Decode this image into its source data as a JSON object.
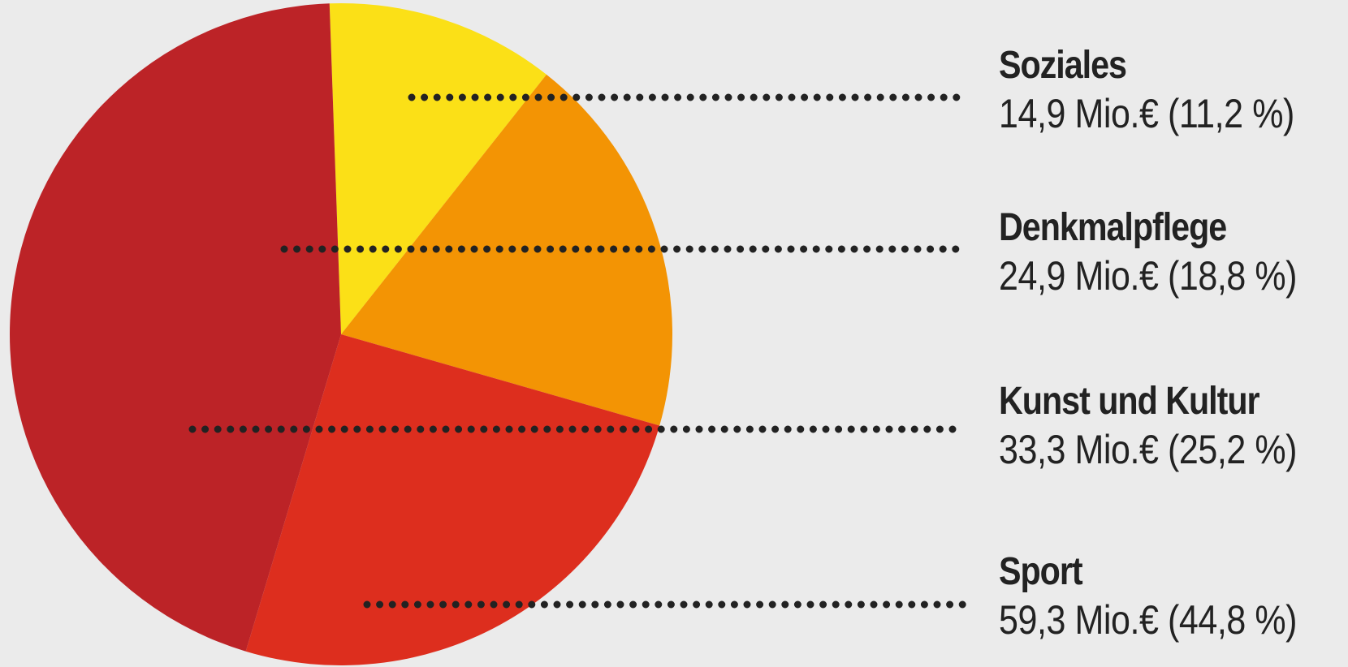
{
  "chart_data": {
    "type": "pie",
    "slices": [
      {
        "label": "Soziales",
        "value_text": "14,9 Mio.€ (11,2 %)",
        "value": 14.9,
        "percent": 11.2,
        "color": "#fbe017"
      },
      {
        "label": "Denkmalpflege",
        "value_text": "24,9 Mio.€ (18,8 %)",
        "value": 24.9,
        "percent": 18.8,
        "color": "#f39404"
      },
      {
        "label": "Kunst und Kultur",
        "value_text": "33,3 Mio.€ (25,2 %)",
        "value": 33.3,
        "percent": 25.2,
        "color": "#dd2e1e"
      },
      {
        "label": "Sport",
        "value_text": "59,3 Mio.€ (44,8 %)",
        "value": 59.3,
        "percent": 44.8,
        "color": "#bc2327"
      }
    ],
    "start_angle_deg": -2,
    "direction": "clockwise",
    "leader_lines": "dotted",
    "leader_color": "#222222",
    "background_color": "#ebebeb"
  }
}
